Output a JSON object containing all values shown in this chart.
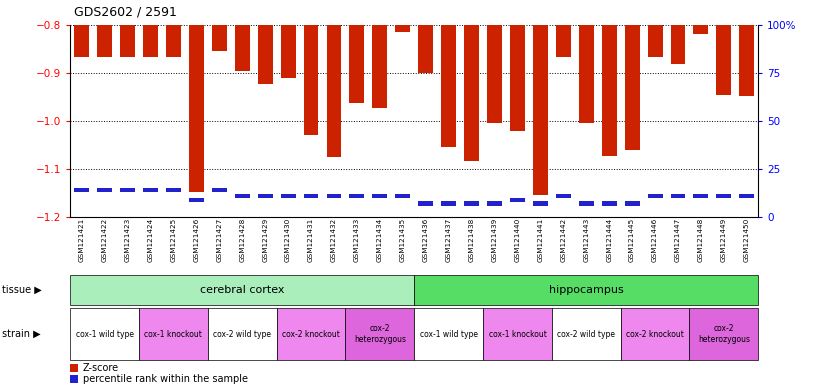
{
  "title": "GDS2602 / 2591",
  "samples": [
    "GSM121421",
    "GSM121422",
    "GSM121423",
    "GSM121424",
    "GSM121425",
    "GSM121426",
    "GSM121427",
    "GSM121428",
    "GSM121429",
    "GSM121430",
    "GSM121431",
    "GSM121432",
    "GSM121433",
    "GSM121434",
    "GSM121435",
    "GSM121436",
    "GSM121437",
    "GSM121438",
    "GSM121439",
    "GSM121440",
    "GSM121441",
    "GSM121442",
    "GSM121443",
    "GSM121444",
    "GSM121445",
    "GSM121446",
    "GSM121447",
    "GSM121448",
    "GSM121449",
    "GSM121450"
  ],
  "zscore": [
    -0.867,
    -0.867,
    -0.867,
    -0.867,
    -0.867,
    -1.148,
    -0.855,
    -0.896,
    -0.922,
    -0.91,
    -1.03,
    -1.076,
    -0.962,
    -0.972,
    -0.815,
    -0.9,
    -1.055,
    -1.083,
    -1.005,
    -1.02,
    -1.155,
    -0.867,
    -1.005,
    -1.072,
    -1.06,
    -0.867,
    -0.882,
    -0.818,
    -0.945,
    -0.948
  ],
  "percentile": [
    14,
    14,
    14,
    14,
    14,
    9,
    14,
    11,
    11,
    11,
    11,
    11,
    11,
    11,
    11,
    7,
    7,
    7,
    7,
    9,
    7,
    11,
    7,
    7,
    7,
    11,
    11,
    11,
    11,
    11
  ],
  "ylim_left": [
    -1.2,
    -0.8
  ],
  "ylim_right": [
    0,
    100
  ],
  "bar_color": "#cc2200",
  "blue_color": "#2222cc",
  "tissue_groups": [
    {
      "text": "cerebral cortex",
      "start": 0,
      "end": 15,
      "color": "#aaeebb"
    },
    {
      "text": "hippocampus",
      "start": 15,
      "end": 30,
      "color": "#55dd66"
    }
  ],
  "strain_groups": [
    {
      "text": "cox-1 wild type",
      "start": 0,
      "end": 3,
      "color": "#ffffff"
    },
    {
      "text": "cox-1 knockout",
      "start": 3,
      "end": 6,
      "color": "#ee88ee"
    },
    {
      "text": "cox-2 wild type",
      "start": 6,
      "end": 9,
      "color": "#ffffff"
    },
    {
      "text": "cox-2 knockout",
      "start": 9,
      "end": 12,
      "color": "#ee88ee"
    },
    {
      "text": "cox-2\nheterozygous",
      "start": 12,
      "end": 15,
      "color": "#dd66dd"
    },
    {
      "text": "cox-1 wild type",
      "start": 15,
      "end": 18,
      "color": "#ffffff"
    },
    {
      "text": "cox-1 knockout",
      "start": 18,
      "end": 21,
      "color": "#ee88ee"
    },
    {
      "text": "cox-2 wild type",
      "start": 21,
      "end": 24,
      "color": "#ffffff"
    },
    {
      "text": "cox-2 knockout",
      "start": 24,
      "end": 27,
      "color": "#ee88ee"
    },
    {
      "text": "cox-2\nheterozygous",
      "start": 27,
      "end": 30,
      "color": "#dd66dd"
    }
  ],
  "fig_bg": "#ffffff",
  "plot_bg": "#ffffff",
  "xticklabel_bg": "#dddddd"
}
